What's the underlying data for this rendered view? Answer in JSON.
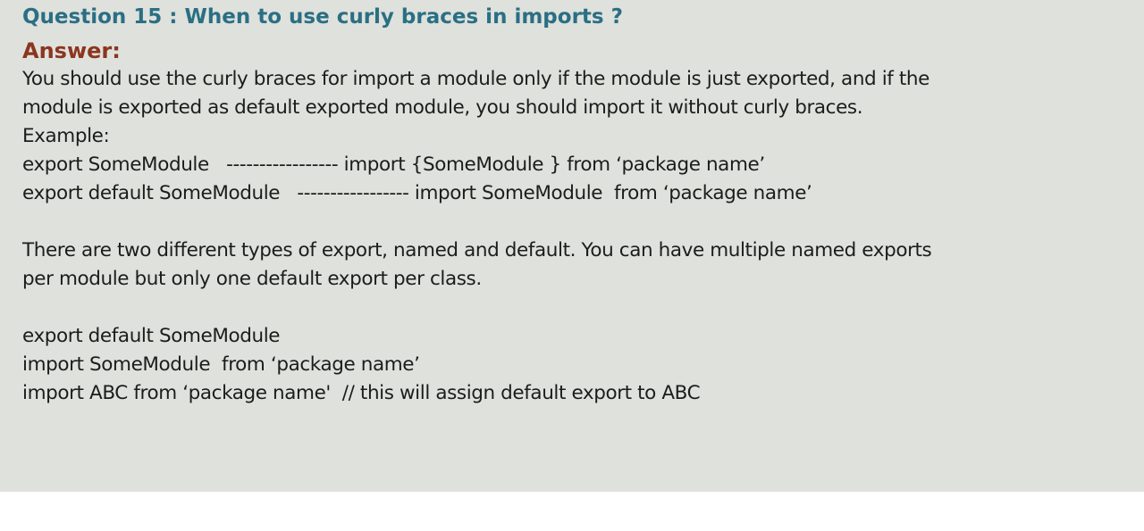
{
  "question": "Question 15 : When to use curly braces in imports ?",
  "answer_label": "Answer:",
  "lines": [
    "You should use the curly braces for import a module only if the module is just exported, and if the",
    "module is exported as default exported module, you should import it without curly braces.",
    "Example:",
    "export SomeModule   ----------------- import {SomeModule } from ‘package name’",
    "export default SomeModule   ----------------- import SomeModule  from ‘package name’",
    "There are two different types of export, named and default. You can have multiple named exports",
    "per module but only one default export per class.",
    "export default SomeModule",
    "import SomeModule  from ‘package name’",
    "import ABC from ‘package name'  // this will assign default export to ABC"
  ]
}
